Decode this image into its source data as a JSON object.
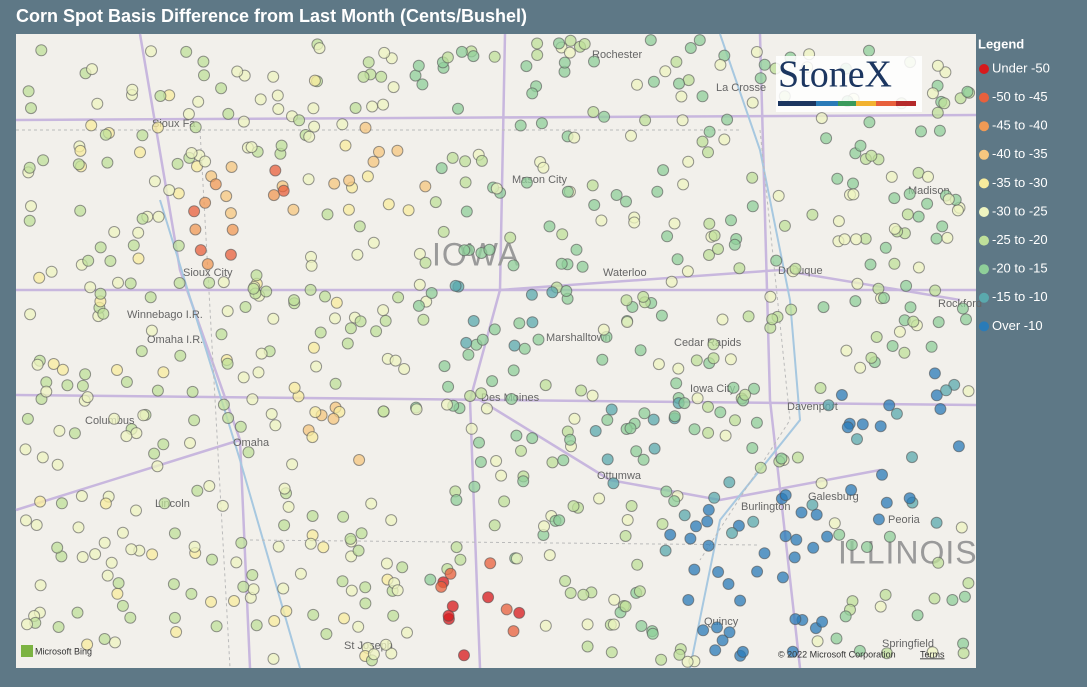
{
  "header": {
    "title": "Corn Spot Basis Difference from Last Month (Cents/Bushel)"
  },
  "legend": {
    "title": "Legend",
    "items": [
      {
        "label": "Under -50",
        "color": "#d7191c"
      },
      {
        "label": "-50 to -45",
        "color": "#e8603c"
      },
      {
        "label": "-45 to -40",
        "color": "#f09a55"
      },
      {
        "label": "-40 to -35",
        "color": "#f6c77f"
      },
      {
        "label": "-35 to -30",
        "color": "#f8ec9d"
      },
      {
        "label": "-30 to -25",
        "color": "#eef4c0"
      },
      {
        "label": "-25 to -20",
        "color": "#bfe09a"
      },
      {
        "label": "-20 to -15",
        "color": "#8fcf99"
      },
      {
        "label": "-15 to -10",
        "color": "#5aa9ad"
      },
      {
        "label": "Over -10",
        "color": "#2a7bb8"
      }
    ]
  },
  "map": {
    "logo": "StoneX",
    "attribution": "Microsoft Bing",
    "copyright": "© 2022 Microsoft Corporation",
    "terms": "Terms",
    "places": [
      "Rochester",
      "La Crosse",
      "Sioux Fa",
      "Mason City",
      "Madison",
      "IOWA",
      "Sioux City",
      "Waterloo",
      "Dubuque",
      "Winnebago I.R.",
      "Omaha I.R.",
      "Marshalltown",
      "Cedar Rapids",
      "Rockford",
      "Iowa City",
      "Columbus",
      "Davenport",
      "Des Moines",
      "Omaha",
      "Ottumwa",
      "Lincoln",
      "Burlington",
      "Galesburg",
      "Peoria",
      "ILLINOIS",
      "Quincy",
      "St Joseph",
      "Springfield"
    ]
  }
}
